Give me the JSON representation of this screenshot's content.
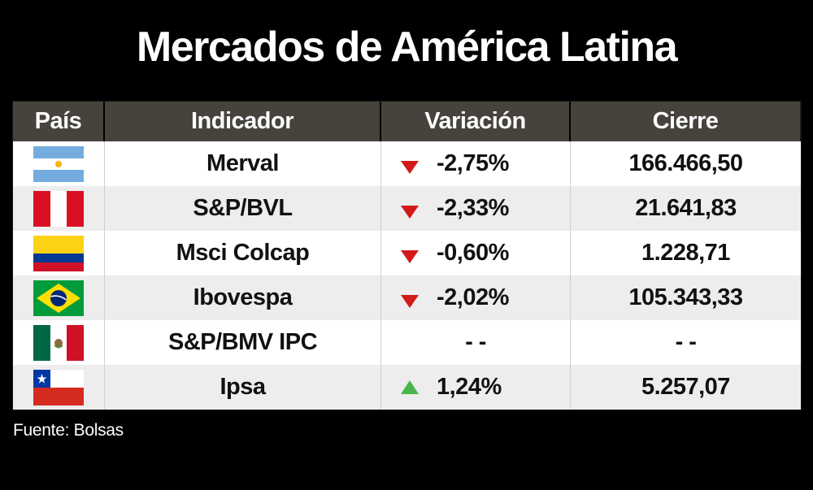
{
  "title": "Mercados de América Latina",
  "headers": {
    "pais": "País",
    "indicador": "Indicador",
    "variacion": "Variación",
    "cierre": "Cierre"
  },
  "rows": [
    {
      "flag": "argentina-flag",
      "indicador": "Merval",
      "direction": "down",
      "variacion": "-2,75%",
      "cierre": "166.466,50"
    },
    {
      "flag": "peru-flag",
      "indicador": "S&P/BVL",
      "direction": "down",
      "variacion": "-2,33%",
      "cierre": "21.641,83"
    },
    {
      "flag": "colombia-flag",
      "indicador": "Msci Colcap",
      "direction": "down",
      "variacion": "-0,60%",
      "cierre": "1.228,71"
    },
    {
      "flag": "brazil-flag",
      "indicador": "Ibovespa",
      "direction": "down",
      "variacion": "-2,02%",
      "cierre": "105.343,33"
    },
    {
      "flag": "mexico-flag",
      "indicador": "S&P/BMV IPC",
      "direction": "none",
      "variacion": "- -",
      "cierre": "- -"
    },
    {
      "flag": "chile-flag",
      "indicador": "Ipsa",
      "direction": "up",
      "variacion": "1,24%",
      "cierre": "5.257,07"
    }
  ],
  "source": "Fuente: Bolsas",
  "colors": {
    "down_arrow": "#d31a1a",
    "up_arrow": "#4bb44b",
    "header_bg": "#46433d"
  }
}
